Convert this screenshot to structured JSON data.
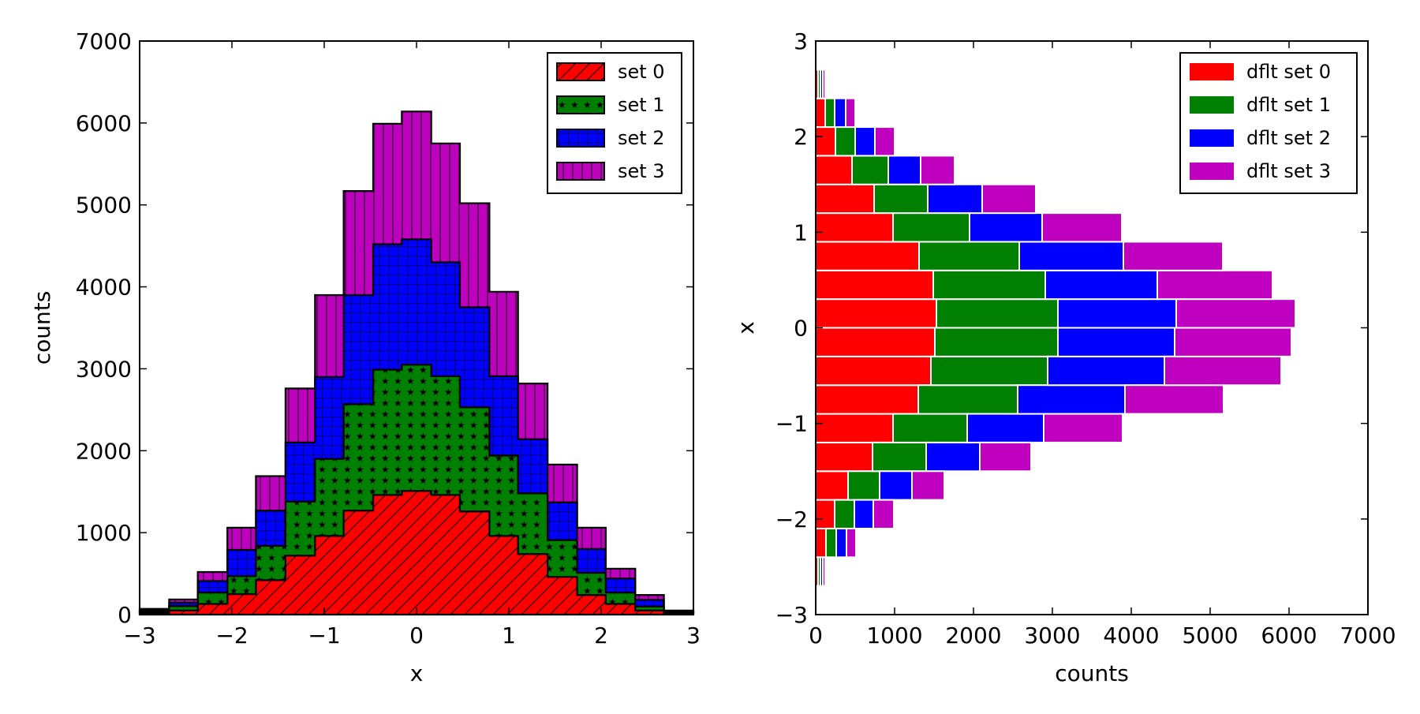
{
  "chart_data": [
    {
      "type": "bar",
      "stacked": true,
      "histtype": "stepfilled",
      "orientation": "vertical",
      "xlabel": "x",
      "ylabel": "counts",
      "xlim": [
        -3,
        3
      ],
      "ylim": [
        0,
        7000
      ],
      "xticks": [
        -3,
        -2,
        -1,
        0,
        1,
        2,
        3
      ],
      "xtick_labels": [
        "−3",
        "−2",
        "−1",
        "0",
        "1",
        "2",
        "3"
      ],
      "yticks": [
        0,
        1000,
        2000,
        3000,
        4000,
        5000,
        6000,
        7000
      ],
      "ytick_labels": [
        "0",
        "1000",
        "2000",
        "3000",
        "4000",
        "5000",
        "6000",
        "7000"
      ],
      "grid": false,
      "legend_position": "top-right",
      "bin_edges": [
        -3.0,
        -2.68,
        -2.37,
        -2.05,
        -1.74,
        -1.42,
        -1.1,
        -0.79,
        -0.47,
        -0.16,
        0.16,
        0.47,
        0.79,
        1.1,
        1.42,
        1.74,
        2.05,
        2.37,
        2.68,
        3.0
      ],
      "series": [
        {
          "name": "set 0",
          "color": "#ff0000",
          "hatch": "diagonal",
          "values": [
            20,
            50,
            130,
            250,
            420,
            720,
            960,
            1270,
            1460,
            1510,
            1460,
            1260,
            960,
            740,
            460,
            240,
            130,
            50,
            20
          ]
        },
        {
          "name": "set 1",
          "color": "#008000",
          "hatch": "stars",
          "values": [
            20,
            55,
            140,
            220,
            420,
            660,
            940,
            1300,
            1530,
            1540,
            1450,
            1270,
            980,
            740,
            450,
            270,
            140,
            50,
            10
          ]
        },
        {
          "name": "set 2",
          "color": "#0000ff",
          "hatch": "grid",
          "values": [
            20,
            40,
            140,
            320,
            430,
            720,
            1000,
            1330,
            1530,
            1530,
            1390,
            1220,
            970,
            660,
            460,
            290,
            170,
            80,
            10
          ]
        },
        {
          "name": "set 3",
          "color": "#bf00bf",
          "hatch": "vertical",
          "values": [
            10,
            40,
            110,
            270,
            420,
            660,
            1000,
            1270,
            1470,
            1560,
            1450,
            1270,
            1030,
            680,
            460,
            260,
            120,
            60,
            10
          ]
        }
      ]
    },
    {
      "type": "bar",
      "stacked": false,
      "histtype": "bar",
      "orientation": "horizontal",
      "xlabel": "counts",
      "ylabel": "x",
      "xlim": [
        0,
        7000
      ],
      "ylim": [
        -3,
        3
      ],
      "xticks": [
        0,
        1000,
        2000,
        3000,
        4000,
        5000,
        6000,
        7000
      ],
      "xtick_labels": [
        "0",
        "1000",
        "2000",
        "3000",
        "4000",
        "5000",
        "6000",
        "7000"
      ],
      "yticks": [
        -3,
        -2,
        -1,
        0,
        1,
        2,
        3
      ],
      "ytick_labels": [
        "−3",
        "−2",
        "−1",
        "0",
        "1",
        "2",
        "3"
      ],
      "grid": false,
      "legend_position": "top-right",
      "bin_edges": [
        -3.0,
        -2.7,
        -2.4,
        -2.1,
        -1.8,
        -1.5,
        -1.2,
        -0.9,
        -0.6,
        -0.3,
        0.0,
        0.3,
        0.6,
        0.9,
        1.2,
        1.5,
        1.8,
        2.1,
        2.4,
        2.7,
        3.0
      ],
      "series": [
        {
          "name": "dflt set 0",
          "color": "#ff0000",
          "values": [
            5,
            30,
            130,
            240,
            410,
            720,
            980,
            1300,
            1460,
            1510,
            1530,
            1490,
            1310,
            980,
            740,
            460,
            250,
            120,
            30,
            5
          ]
        },
        {
          "name": "dflt set 1",
          "color": "#008000",
          "values": [
            5,
            30,
            130,
            250,
            400,
            680,
            940,
            1260,
            1480,
            1560,
            1540,
            1420,
            1270,
            970,
            680,
            460,
            250,
            120,
            30,
            5
          ]
        },
        {
          "name": "dflt set 2",
          "color": "#0000ff",
          "values": [
            5,
            30,
            130,
            240,
            410,
            680,
            970,
            1360,
            1480,
            1480,
            1500,
            1420,
            1320,
            920,
            690,
            410,
            250,
            140,
            30,
            5
          ]
        },
        {
          "name": "dflt set 3",
          "color": "#bf00bf",
          "values": [
            5,
            30,
            120,
            260,
            410,
            650,
            1000,
            1250,
            1480,
            1480,
            1510,
            1460,
            1260,
            1010,
            680,
            430,
            250,
            120,
            30,
            5
          ]
        }
      ]
    }
  ]
}
